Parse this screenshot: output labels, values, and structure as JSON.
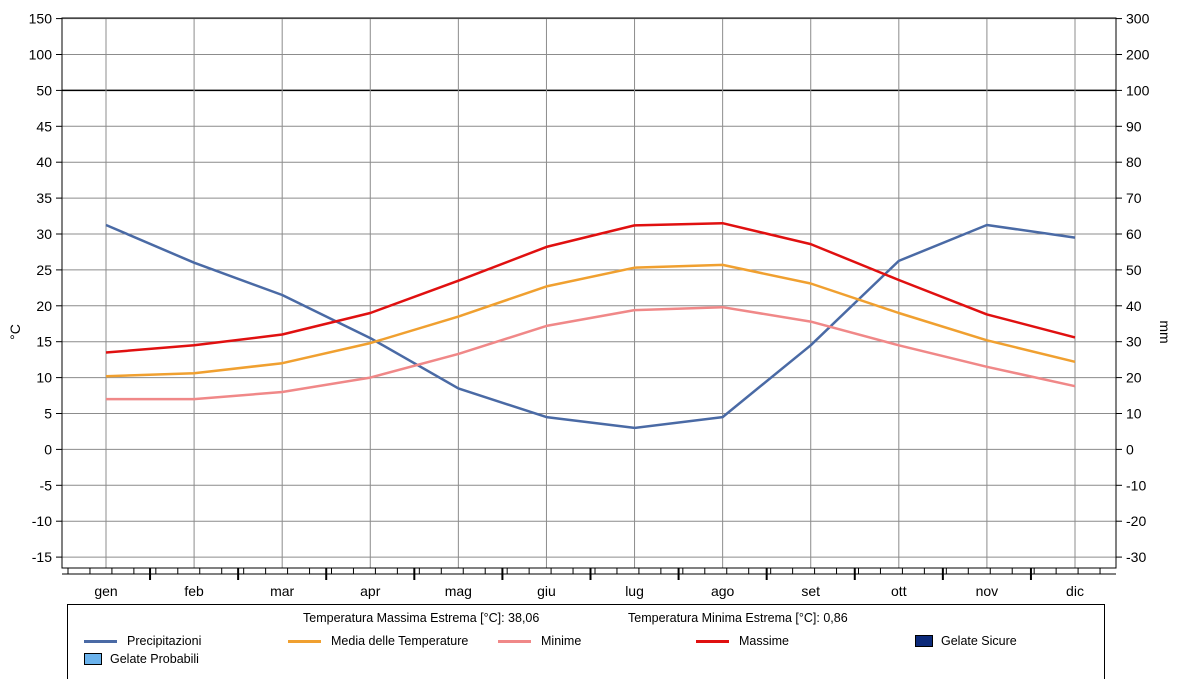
{
  "chart_data": {
    "type": "line",
    "categories": [
      "gen",
      "feb",
      "mar",
      "apr",
      "mag",
      "giu",
      "lug",
      "ago",
      "set",
      "ott",
      "nov",
      "dic"
    ],
    "left_axis": {
      "label": "°C",
      "ticks": [
        150,
        100,
        50,
        45,
        40,
        35,
        30,
        25,
        20,
        15,
        10,
        5,
        0,
        -5,
        -10,
        -15
      ],
      "scale_note": "0-50 linear, 50-150 compressed"
    },
    "right_axis": {
      "label": "mm",
      "ticks": [
        300,
        200,
        100,
        90,
        80,
        70,
        60,
        50,
        40,
        30,
        20,
        10,
        0,
        -10,
        -20,
        -30
      ]
    },
    "series": [
      {
        "name": "Precipitazioni",
        "axis": "right",
        "color": "#4a6aa5",
        "values": [
          62.5,
          52,
          43,
          31,
          17,
          9,
          6,
          9,
          29,
          52.5,
          62.5,
          59
        ]
      },
      {
        "name": "Media delle Temperature",
        "axis": "left",
        "color": "#f0a030",
        "values": [
          10.2,
          10.6,
          12,
          14.8,
          18.5,
          22.7,
          25.3,
          25.7,
          23.1,
          19,
          15.2,
          12.2
        ]
      },
      {
        "name": "Minime",
        "axis": "left",
        "color": "#f08888",
        "values": [
          7,
          7,
          8,
          10,
          13.3,
          17.2,
          19.4,
          19.8,
          17.8,
          14.5,
          11.5,
          8.8
        ]
      },
      {
        "name": "Massime",
        "axis": "left",
        "color": "#e01010",
        "values": [
          13.5,
          14.5,
          16,
          19,
          23.5,
          28.2,
          31.2,
          31.5,
          28.6,
          23.6,
          18.8,
          15.6
        ]
      }
    ],
    "grid": true
  },
  "legend": {
    "extreme_max": "Temperatura Massima Estrema [°C]: 38,06",
    "extreme_min": "Temperatura Minima Estrema [°C]: 0,86",
    "precip": "Precipitazioni",
    "media": "Media delle Temperature",
    "minime": "Minime",
    "massime": "Massime",
    "gelate_sicure": "Gelate Sicure",
    "gelate_probabili": "Gelate Probabili"
  },
  "colors": {
    "precip": "#4a6aa5",
    "media": "#f0a030",
    "minime": "#f08888",
    "massime": "#e01010",
    "gelate_sicure": "#0c2a7a",
    "gelate_probabili": "#6ab2ec"
  }
}
